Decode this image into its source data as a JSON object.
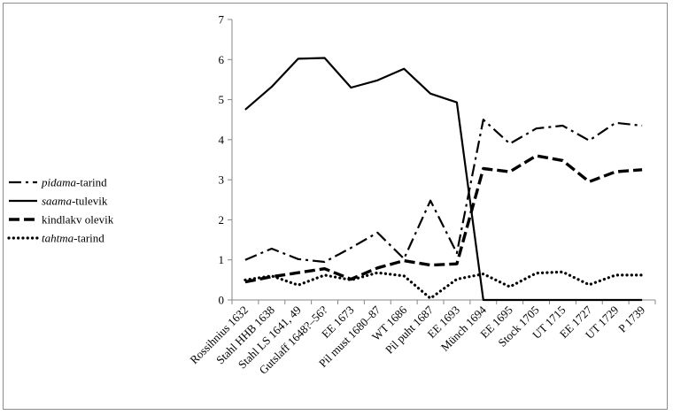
{
  "chart_data": {
    "type": "line",
    "categories": [
      "Rossihnius 1632",
      "Stahl HHB 1638",
      "Stahl LS 1641, 49",
      "Gutslaff 1648?–56?",
      "EE 1673",
      "Pil must 1680–87",
      "WT 1686",
      "Pil puht 1687",
      "EE 1693",
      "Münch 1694",
      "EE 1695",
      "Stock 1705",
      "UT 1715",
      "EE 1727",
      "UT 1729",
      "P 1739"
    ],
    "ylim": [
      0,
      7
    ],
    "yticks": [
      0,
      1,
      2,
      3,
      4,
      5,
      6,
      7
    ],
    "xlabel": "",
    "ylabel": "",
    "legend_position": "left",
    "grid": false,
    "series": [
      {
        "name_italic": "pidama",
        "name_rest": "-tarind",
        "style": "dashdot",
        "values": [
          1.0,
          1.28,
          1.02,
          0.95,
          1.3,
          1.68,
          1.03,
          2.48,
          1.17,
          4.5,
          3.9,
          4.28,
          4.35,
          3.98,
          4.42,
          4.35
        ]
      },
      {
        "name_italic": "saama",
        "name_rest": "-tulevik",
        "style": "solid",
        "values": [
          4.75,
          5.32,
          6.02,
          6.04,
          5.3,
          5.48,
          5.77,
          5.15,
          4.93,
          0.0,
          0.0,
          0.0,
          0.0,
          0.0,
          0.0,
          0.0
        ]
      },
      {
        "name_italic": "",
        "name_rest": "kindlakv olevik",
        "style": "dashed",
        "values": [
          0.45,
          0.58,
          0.68,
          0.78,
          0.52,
          0.8,
          0.98,
          0.87,
          0.9,
          3.28,
          3.2,
          3.6,
          3.48,
          2.95,
          3.2,
          3.25
        ]
      },
      {
        "name_italic": "tahtma",
        "name_rest": "-tarind",
        "style": "dotted",
        "values": [
          0.5,
          0.6,
          0.37,
          0.62,
          0.5,
          0.68,
          0.6,
          0.04,
          0.52,
          0.65,
          0.33,
          0.67,
          0.7,
          0.38,
          0.62,
          0.62
        ]
      }
    ]
  }
}
